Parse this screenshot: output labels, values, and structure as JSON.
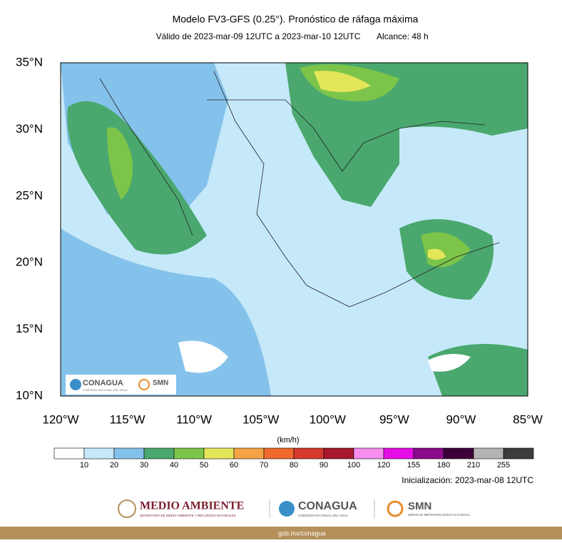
{
  "header": {
    "title": "Modelo FV3-GFS (0.25°). Pronóstico de ráfaga máxima",
    "subtitle": "Válido de 2023-mar-09 12UTC a 2023-mar-10 12UTC",
    "range": "Alcance: 48 h"
  },
  "map": {
    "lat_labels": [
      "35°N",
      "30°N",
      "25°N",
      "20°N",
      "15°N",
      "10°N"
    ],
    "lon_labels": [
      "120°W",
      "115°W",
      "110°W",
      "105°W",
      "100°W",
      "95°W",
      "90°W",
      "85°W"
    ],
    "logo_conagua": "CONAGUA",
    "logo_conagua_sub": "COMISIÓN NACIONAL DEL AGUA",
    "logo_smn": "SMN"
  },
  "colorbar": {
    "unit": "(km/h)",
    "labels": [
      10,
      20,
      30,
      40,
      50,
      60,
      70,
      80,
      90,
      100,
      120,
      155,
      180,
      210,
      255
    ],
    "colors": [
      "#ffffff",
      "#c6e9fa",
      "#85c2eb",
      "#4aa86e",
      "#7cc44a",
      "#e4e65a",
      "#f4a444",
      "#f06a2e",
      "#d63a2e",
      "#a8182a",
      "#f78ef0",
      "#e60ee6",
      "#8c0a8c",
      "#3c0038",
      "#b4b4b4",
      "#3c3c3c"
    ]
  },
  "init": "Inicialización: 2023-mar-08 12UTC",
  "footer": {
    "medio_ambiente": "MEDIO AMBIENTE",
    "medio_ambiente_sub": "SECRETARÍA DE MEDIO AMBIENTE Y RECURSOS NATURALES",
    "conagua": "CONAGUA",
    "conagua_sub": "COMISIÓN NACIONAL DEL AGUA",
    "smn": "SMN",
    "smn_sub": "SERVICIO METEOROLÓGICO NACIONAL",
    "url": "gob.mx/conagua"
  }
}
